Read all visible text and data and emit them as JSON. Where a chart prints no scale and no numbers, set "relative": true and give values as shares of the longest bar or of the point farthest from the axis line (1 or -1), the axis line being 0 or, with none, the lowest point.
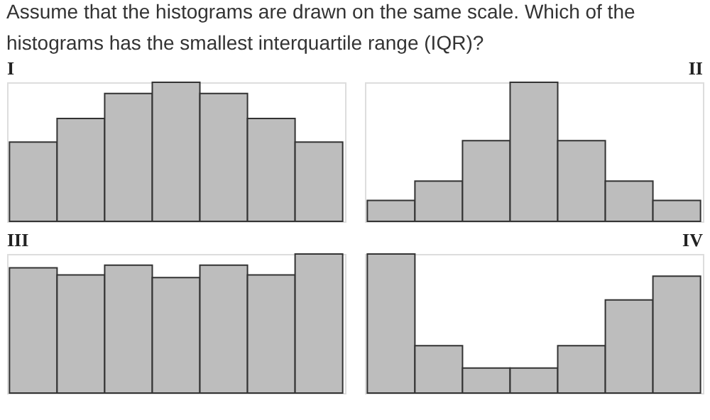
{
  "chart_data": [
    {
      "type": "bar",
      "title": "I",
      "relative": true,
      "categories": [
        null,
        null,
        null,
        null,
        null,
        null,
        null
      ],
      "color": "#bdbdbd",
      "values": [
        0.57,
        0.74,
        0.92,
        1,
        0.92,
        0.74,
        0.57
      ],
      "annotations": [
        "Assume that the histograms are drawn on the same scale. Which of the histograms has the smallest interquartile range (IQR)?"
      ]
    },
    {
      "type": "bar",
      "title": "II",
      "relative": true,
      "categories": [
        null,
        null,
        null,
        null,
        null,
        null,
        null
      ],
      "color": "#bdbdbd",
      "values": [
        0.15,
        0.29,
        0.58,
        1,
        0.58,
        0.29,
        0.15
      ]
    },
    {
      "type": "bar",
      "title": "III",
      "relative": true,
      "categories": [
        null,
        null,
        null,
        null,
        null,
        null,
        null
      ],
      "color": "#bdbdbd",
      "values": [
        0.9,
        0.85,
        0.92,
        0.83,
        0.92,
        0.85,
        1
      ]
    },
    {
      "type": "bar",
      "title": "IV",
      "relative": true,
      "categories": [
        null,
        null,
        null,
        null,
        null,
        null,
        null
      ],
      "color": "#bdbdbd",
      "values": [
        1,
        0.34,
        0.18,
        0.18,
        0.34,
        0.67,
        0.84
      ]
    }
  ]
}
